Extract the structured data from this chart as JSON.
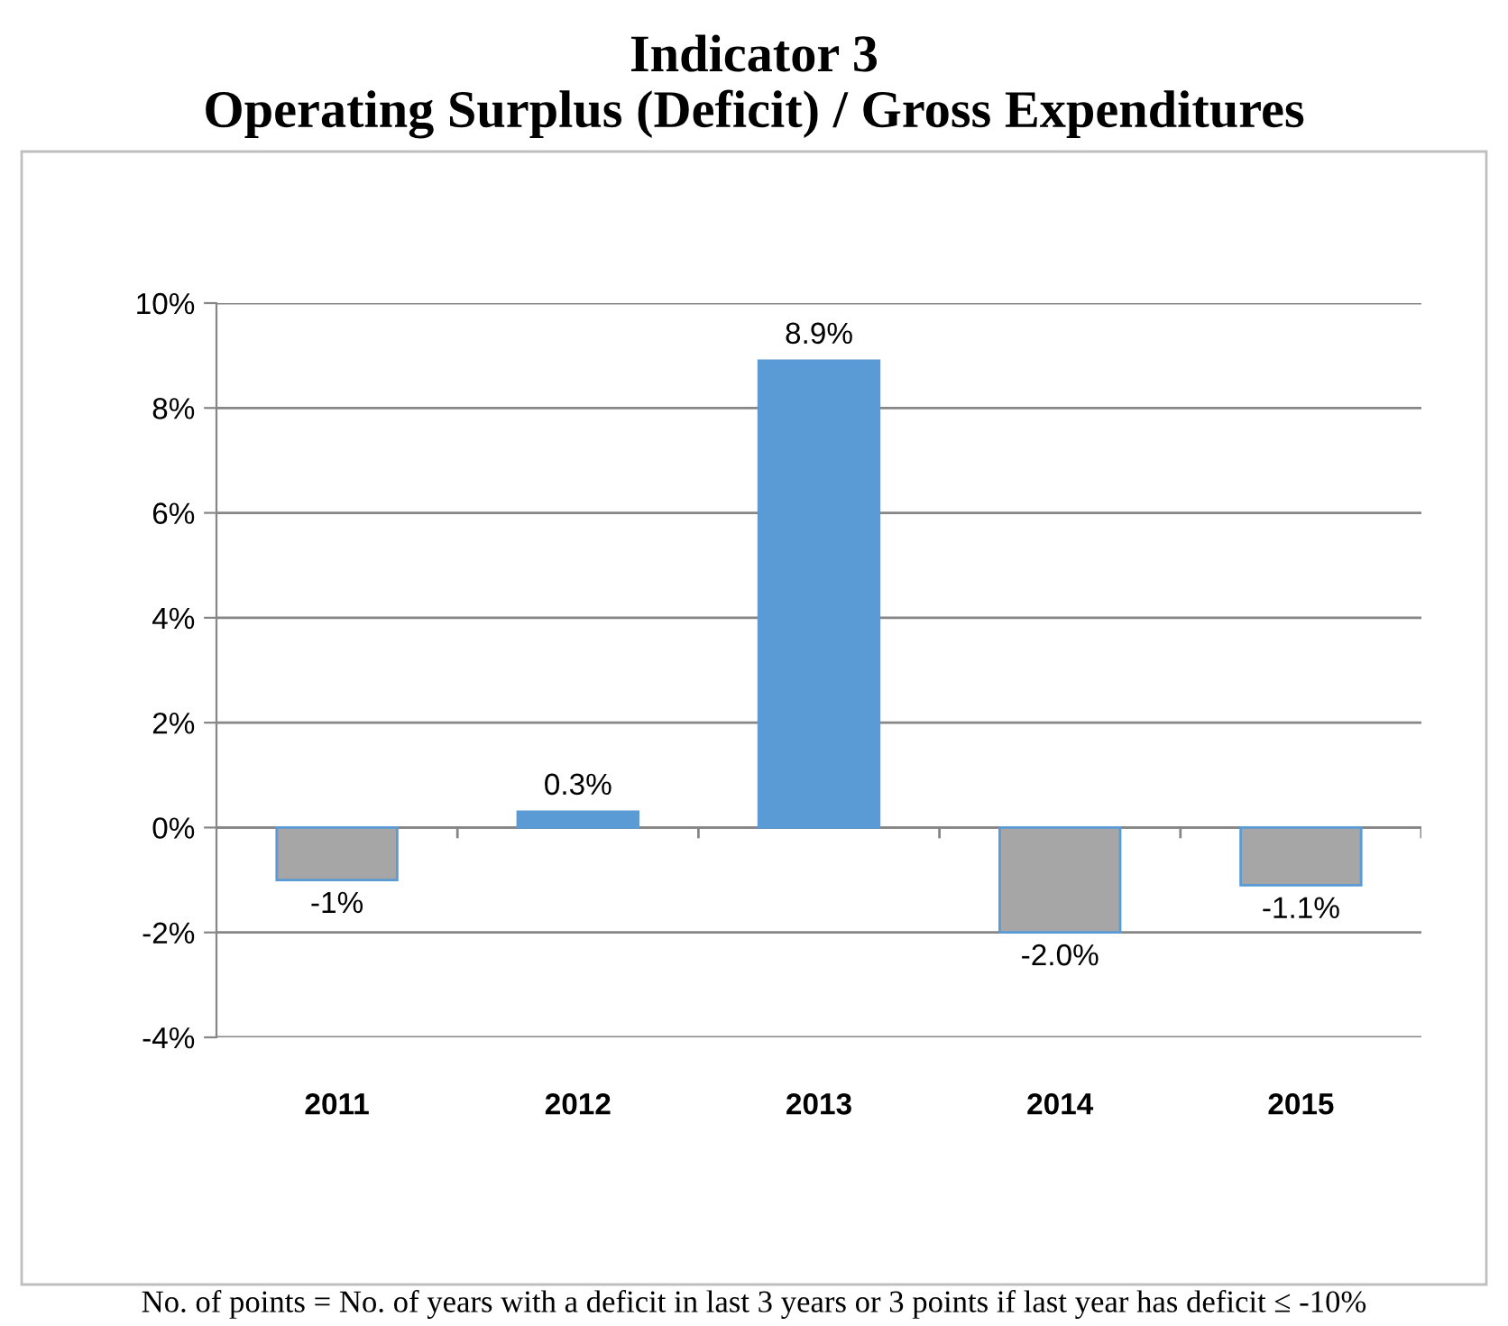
{
  "chart_data": {
    "type": "bar",
    "title": "Indicator 3\nOperating Surplus (Deficit) / Gross Expenditures",
    "categories": [
      "2011",
      "2012",
      "2013",
      "2014",
      "2015"
    ],
    "values": [
      -1,
      0.3,
      8.9,
      -2.0,
      -1.1
    ],
    "colors": [
      "#a6a6a6",
      "#5b9bd5",
      "#5b9bd5",
      "#a6a6a6",
      "#a6a6a6"
    ],
    "value_labels": [
      "-1%",
      "0.3%",
      "8.9%",
      "-2.0%",
      "-1.1%"
    ],
    "ylim": [
      -4,
      10
    ],
    "yticks": [
      {
        "value": -4,
        "label": "-4%"
      },
      {
        "value": -2,
        "label": "-2%"
      },
      {
        "value": 0,
        "label": "0%"
      },
      {
        "value": 2,
        "label": "2%"
      },
      {
        "value": 4,
        "label": "4%"
      },
      {
        "value": 6,
        "label": "6%"
      },
      {
        "value": 8,
        "label": "8%"
      },
      {
        "value": 10,
        "label": "10%"
      }
    ],
    "grid": "y",
    "annotations": [
      "No. of points = No. of years with a deficit in last 3 years or 3 points if last year has deficit ≤ -10%"
    ]
  }
}
